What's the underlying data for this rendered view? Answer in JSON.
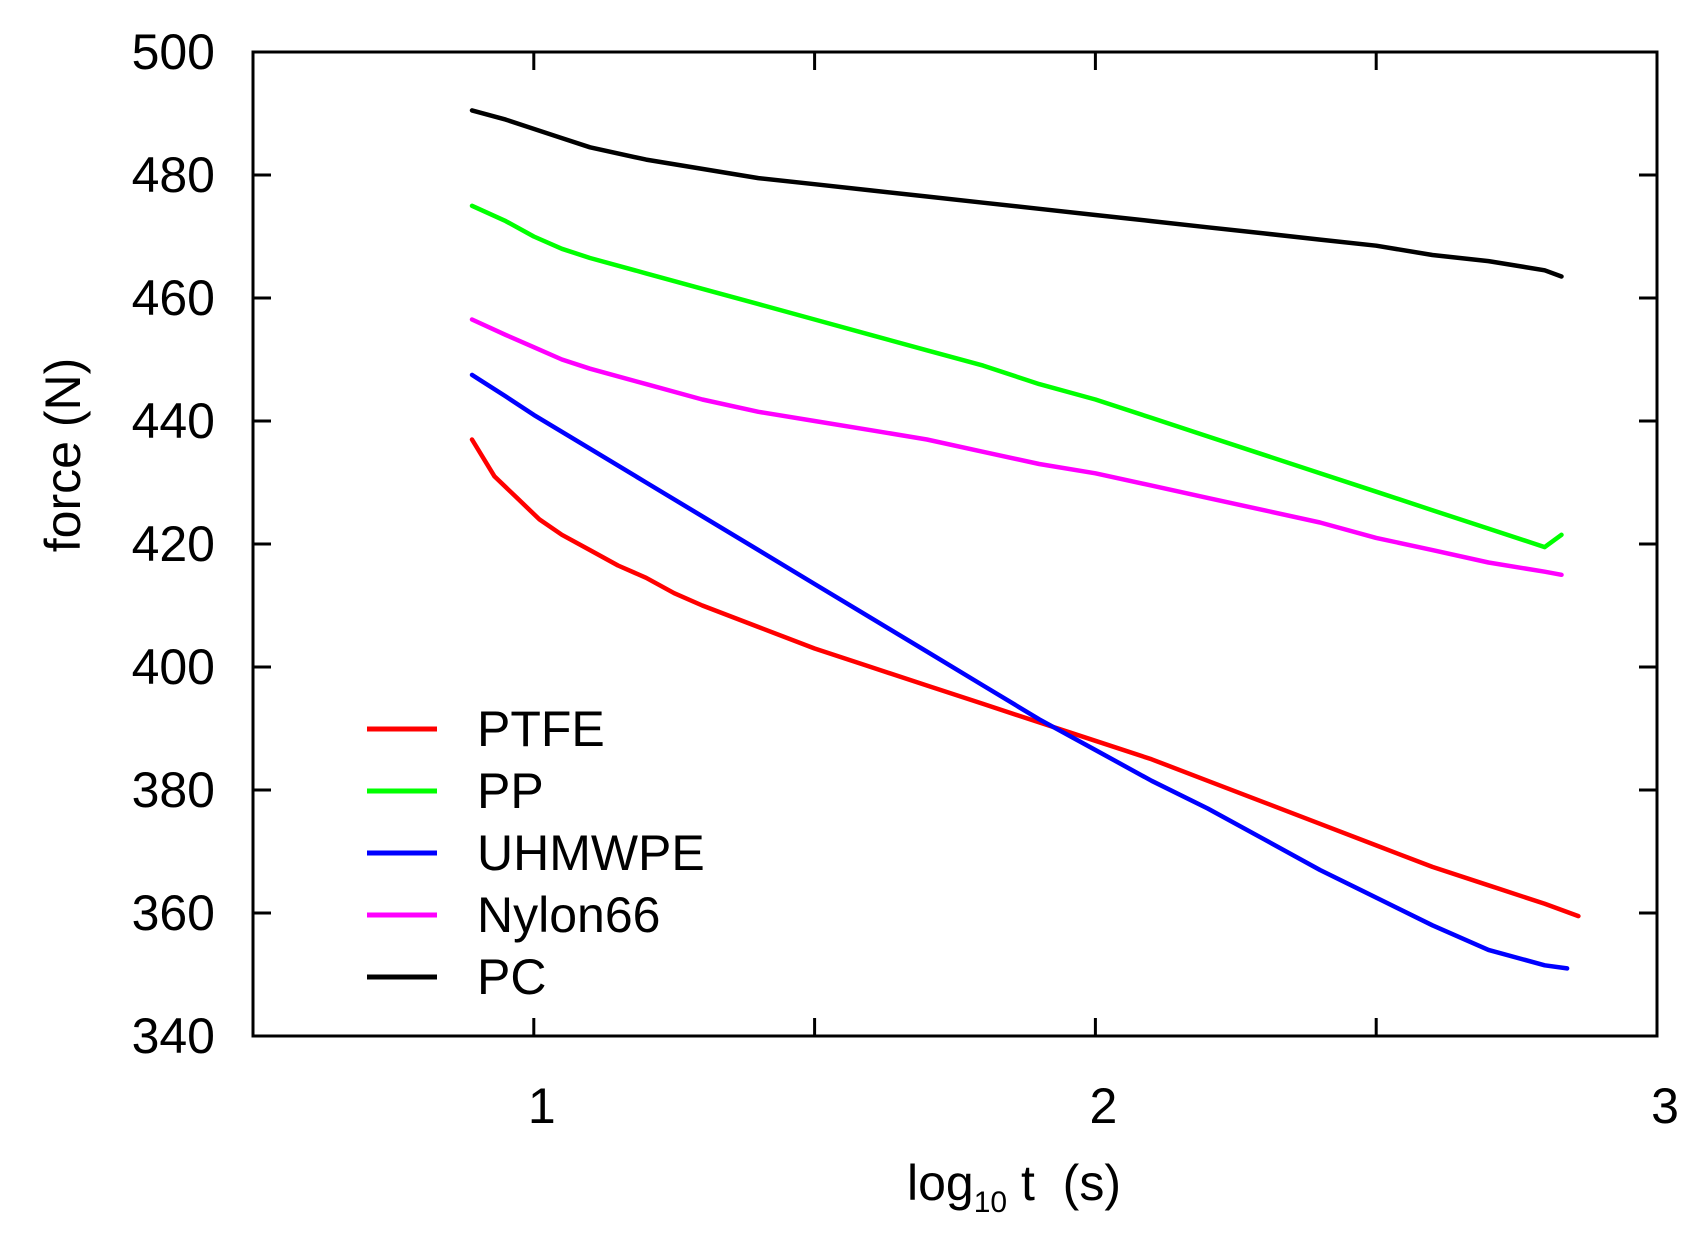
{
  "chart_data": {
    "type": "line",
    "title": "",
    "xlabel": {
      "base": "log",
      "subscript": "10",
      "rest": " t  (s)"
    },
    "ylabel": "force  (N)",
    "xlim": [
      0.5,
      3.0
    ],
    "ylim": [
      340,
      500
    ],
    "x_ticks": [
      {
        "value": 0.5,
        "label": ""
      },
      {
        "value": 1.0,
        "label": "1"
      },
      {
        "value": 1.5,
        "label": ""
      },
      {
        "value": 2.0,
        "label": "2"
      },
      {
        "value": 2.5,
        "label": ""
      },
      {
        "value": 3.0,
        "label": "3"
      }
    ],
    "y_ticks": [
      {
        "value": 340,
        "label": "340"
      },
      {
        "value": 360,
        "label": "360"
      },
      {
        "value": 380,
        "label": "380"
      },
      {
        "value": 400,
        "label": "400"
      },
      {
        "value": 420,
        "label": "420"
      },
      {
        "value": 440,
        "label": "440"
      },
      {
        "value": 460,
        "label": "460"
      },
      {
        "value": 480,
        "label": "480"
      },
      {
        "value": 500,
        "label": "500"
      }
    ],
    "grid": false,
    "legend_position": "bottom-left",
    "series": [
      {
        "name": "PTFE",
        "color": "#ff0000",
        "x": [
          0.89,
          0.93,
          0.97,
          1.01,
          1.05,
          1.1,
          1.15,
          1.2,
          1.25,
          1.3,
          1.4,
          1.5,
          1.6,
          1.7,
          1.8,
          1.9,
          2.0,
          2.1,
          2.2,
          2.3,
          2.4,
          2.5,
          2.6,
          2.7,
          2.8,
          2.86
        ],
        "y": [
          437.0,
          431.0,
          427.5,
          424.0,
          421.5,
          419.0,
          416.5,
          414.5,
          412.0,
          410.0,
          406.5,
          403.0,
          400.0,
          397.0,
          394.0,
          391.0,
          388.0,
          385.0,
          381.5,
          378.0,
          374.5,
          371.0,
          367.5,
          364.5,
          361.5,
          359.5
        ]
      },
      {
        "name": "PP",
        "color": "#00ff00",
        "x": [
          0.89,
          0.95,
          1.0,
          1.05,
          1.1,
          1.2,
          1.3,
          1.4,
          1.5,
          1.6,
          1.7,
          1.8,
          1.9,
          2.0,
          2.1,
          2.2,
          2.3,
          2.4,
          2.5,
          2.6,
          2.7,
          2.8,
          2.83
        ],
        "y": [
          475.0,
          472.5,
          470.0,
          468.0,
          466.5,
          464.0,
          461.5,
          459.0,
          456.5,
          454.0,
          451.5,
          449.0,
          446.0,
          443.5,
          440.5,
          437.5,
          434.5,
          431.5,
          428.5,
          425.5,
          422.5,
          419.5,
          421.5
        ]
      },
      {
        "name": "UHMWPE",
        "color": "#0000ff",
        "x": [
          0.89,
          0.95,
          1.0,
          1.1,
          1.2,
          1.3,
          1.4,
          1.5,
          1.6,
          1.7,
          1.8,
          1.9,
          2.0,
          2.1,
          2.2,
          2.3,
          2.4,
          2.5,
          2.6,
          2.7,
          2.8,
          2.84
        ],
        "y": [
          447.5,
          444.0,
          441.0,
          435.5,
          430.0,
          424.5,
          419.0,
          413.5,
          408.0,
          402.5,
          397.0,
          391.5,
          386.5,
          381.5,
          377.0,
          372.0,
          367.0,
          362.5,
          358.0,
          354.0,
          351.5,
          351.0
        ]
      },
      {
        "name": "Nylon66",
        "color": "#ff00ff",
        "x": [
          0.89,
          0.95,
          1.0,
          1.05,
          1.1,
          1.2,
          1.3,
          1.4,
          1.5,
          1.6,
          1.7,
          1.8,
          1.9,
          2.0,
          2.1,
          2.2,
          2.3,
          2.4,
          2.5,
          2.6,
          2.7,
          2.8,
          2.83
        ],
        "y": [
          456.5,
          454.0,
          452.0,
          450.0,
          448.5,
          446.0,
          443.5,
          441.5,
          440.0,
          438.5,
          437.0,
          435.0,
          433.0,
          431.5,
          429.5,
          427.5,
          425.5,
          423.5,
          421.0,
          419.0,
          417.0,
          415.5,
          415.0
        ]
      },
      {
        "name": "PC",
        "color": "#000000",
        "x": [
          0.89,
          0.95,
          1.0,
          1.05,
          1.1,
          1.2,
          1.3,
          1.4,
          1.5,
          1.6,
          1.7,
          1.8,
          1.9,
          2.0,
          2.1,
          2.2,
          2.3,
          2.4,
          2.5,
          2.6,
          2.7,
          2.8,
          2.83
        ],
        "y": [
          490.5,
          489.0,
          487.5,
          486.0,
          484.5,
          482.5,
          481.0,
          479.5,
          478.5,
          477.5,
          476.5,
          475.5,
          474.5,
          473.5,
          472.5,
          471.5,
          470.5,
          469.5,
          468.5,
          467.0,
          466.0,
          464.5,
          463.5
        ]
      }
    ]
  }
}
